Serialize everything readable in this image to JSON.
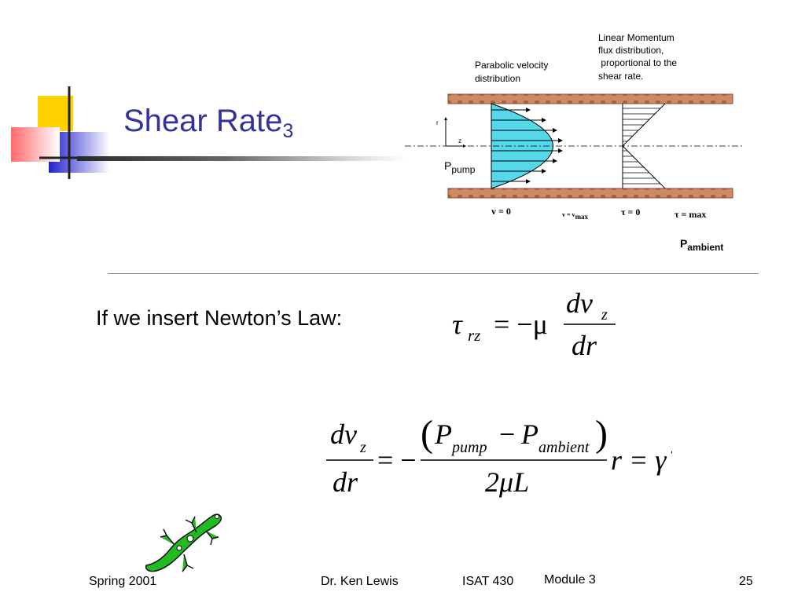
{
  "slide": {
    "title_main": "Shear Rate",
    "title_sub": "3",
    "body_text": "If we insert Newton’s Law:"
  },
  "diagram": {
    "label_parabolic": [
      "Parabolic velocity",
      "distribution"
    ],
    "label_momentum": [
      "Linear Momentum",
      "flux distribution,",
      " proportional to the",
      "shear rate."
    ],
    "axis_r": "r",
    "axis_z": "z",
    "p_pump_main": "P",
    "p_pump_sub": "pump",
    "p_ambient_main": "P",
    "p_ambient_sub": "ambient",
    "v_zero": "v = 0",
    "v_max_main": "v = v",
    "v_max_sub": "max",
    "tau_zero": "τ = 0",
    "tau_max": "τ = max"
  },
  "equations": {
    "eq1_tau": "τ",
    "eq1_tau_sub": "rz",
    "eq1_rhs": "= −μ",
    "eq1_num": "dv",
    "eq1_num_sub": "z",
    "eq1_den": "dr",
    "eq2_num": "dv",
    "eq2_num_sub": "z",
    "eq2_den": "dr",
    "eq2_eq": "= −",
    "eq2_num2_p1": "P",
    "eq2_num2_p1_sub": "pump",
    "eq2_minus": "−",
    "eq2_num2_p2": "P",
    "eq2_num2_p2_sub": "ambient",
    "eq2_den2": "2μL",
    "eq2_tail": "r = γ̇"
  },
  "footer": {
    "term": "Spring 2001",
    "author": "Dr. Ken Lewis",
    "course": "ISAT 430",
    "module": "Module 3",
    "page": "25"
  },
  "colors": {
    "title": "#333399",
    "pipe_wall": "#cd8a64",
    "velocity_fill": "#55d8ea",
    "gecko": "#22bb22"
  }
}
